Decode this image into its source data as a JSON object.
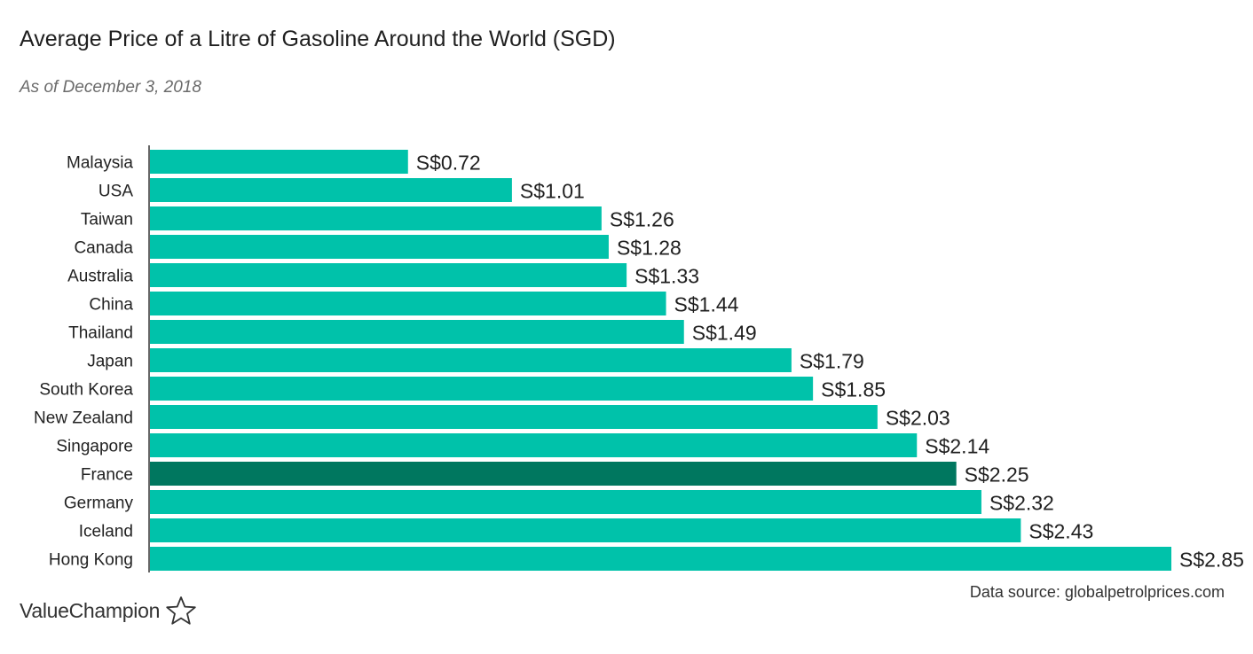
{
  "header": {
    "title": "Average Price of a Litre of Gasoline Around the World (SGD)",
    "subtitle": "As of December 3, 2018"
  },
  "footer": {
    "source": "Data source: globalpetrolprices.com",
    "brand": "ValueChampion",
    "brand_icon": "star-outline-icon"
  },
  "colors": {
    "bar": "#00c2aa",
    "highlight": "#00775f",
    "axis": "#333333",
    "text": "#222222"
  },
  "chart_data": {
    "type": "bar",
    "orientation": "horizontal",
    "title": "Average Price of a Litre of Gasoline Around the World (SGD)",
    "subtitle": "As of December 3, 2018",
    "categories": [
      "Malaysia",
      "USA",
      "Taiwan",
      "Canada",
      "Australia",
      "China",
      "Thailand",
      "Japan",
      "South Korea",
      "New Zealand",
      "Singapore",
      "France",
      "Germany",
      "Iceland",
      "Hong Kong"
    ],
    "values": [
      0.72,
      1.01,
      1.26,
      1.28,
      1.33,
      1.44,
      1.49,
      1.79,
      1.85,
      2.03,
      2.14,
      2.25,
      2.32,
      2.43,
      2.85
    ],
    "value_labels": [
      "S$0.72",
      "S$1.01",
      "S$1.26",
      "S$1.28",
      "S$1.33",
      "S$1.44",
      "S$1.49",
      "S$1.79",
      "S$1.85",
      "S$2.03",
      "S$2.14",
      "S$2.25",
      "S$2.32",
      "S$2.43",
      "S$2.85"
    ],
    "highlight": "France",
    "xlim": [
      0,
      2.85
    ],
    "xlabel": "",
    "ylabel": "",
    "grid": false,
    "legend": "none"
  }
}
